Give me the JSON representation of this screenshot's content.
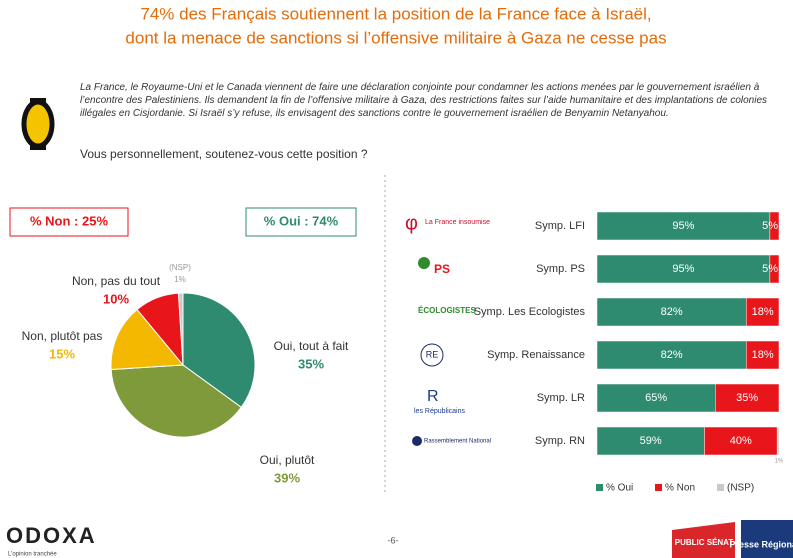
{
  "header": {
    "title_line1": "74% des Français soutiennent la position de la France face à Israël,",
    "title_line2": "dont la menace de sanctions si l’offensive militaire à Gaza ne cesse pas"
  },
  "intro": "La France, le Royaume-Uni et le Canada viennent de faire une déclaration conjointe pour condamner les actions menées par le gouvernement israélien à l’encontre des Palestiniens. Ils demandent la fin de l’offensive militaire à Gaza, des restrictions faites sur l’aide humanitaire et des implantations de colonies illégales en Cisjordanie. Si Israël s’y refuse, ils envisagent des sanctions contre le gouvernement israélien de Benyamin Netanyahou.",
  "question": "Vous personnellement, soutenez-vous cette position ?",
  "summary": {
    "non": "% Non : 25%",
    "oui": "% Oui : 74%"
  },
  "logos": {
    "lfi": "La France insoumise",
    "ps": "PS",
    "eco": "ÉCOLOGISTES",
    "re": "RE",
    "lr": "les Républicains",
    "rn": "Rassemblement National"
  },
  "footer": {
    "brand": "ODOXA",
    "tagline": "L’opinion tranchée",
    "page": "-6-",
    "partner1": "PUBLIC SÉNAT",
    "partner2": "Presse Régionale"
  },
  "chart_data": [
    {
      "type": "pie",
      "categories": [
        "Oui, tout à fait",
        "Oui, plutôt",
        "Non, plutôt pas",
        "Non, pas du tout",
        "(NSP)"
      ],
      "values": [
        35,
        39,
        15,
        10,
        1
      ],
      "value_labels": [
        "35%",
        "39%",
        "15%",
        "10%",
        "1%"
      ],
      "colors": [
        "#2e8b6f",
        "#7f9a3a",
        "#f5b800",
        "#e8151b",
        "#c9c9c9"
      ]
    },
    {
      "type": "hbar_stacked",
      "categories": [
        "Symp. LFI",
        "Symp. PS",
        "Symp. Les Ecologistes",
        "Symp. Renaissance",
        "Symp. LR",
        "Symp. RN"
      ],
      "xlim": [
        0,
        100
      ],
      "series": [
        {
          "name": "% Oui",
          "color": "#2e8b6f",
          "values": [
            95,
            95,
            82,
            82,
            65,
            59
          ],
          "value_labels": [
            "95%",
            "95%",
            "82%",
            "82%",
            "65%",
            "59%"
          ]
        },
        {
          "name": "% Non",
          "color": "#e8151b",
          "values": [
            5,
            5,
            18,
            18,
            35,
            40
          ],
          "value_labels": [
            "5%",
            "5%",
            "18%",
            "18%",
            "35%",
            "40%"
          ]
        },
        {
          "name": "(NSP)",
          "color": "#c9c9c9",
          "values": [
            0,
            0,
            0,
            0,
            0,
            1
          ],
          "value_labels": [
            null,
            null,
            null,
            null,
            null,
            "1%"
          ]
        }
      ],
      "legend": "bottom-right"
    }
  ]
}
